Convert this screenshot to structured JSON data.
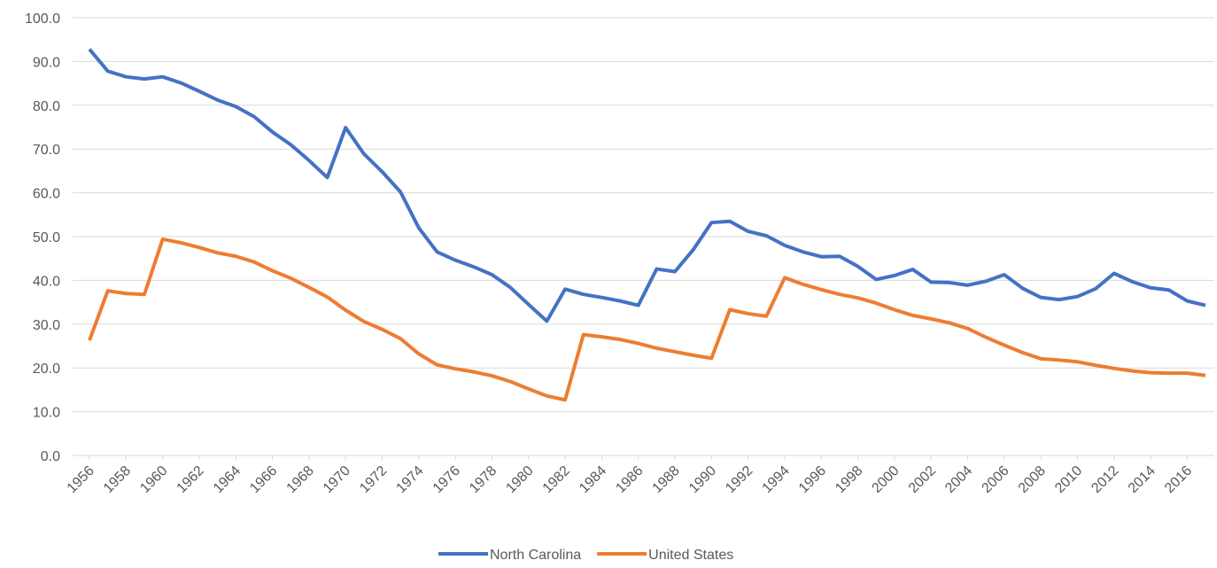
{
  "chart_data": {
    "type": "line",
    "x": [
      1956,
      1957,
      1958,
      1959,
      1960,
      1961,
      1962,
      1963,
      1964,
      1965,
      1966,
      1967,
      1968,
      1969,
      1970,
      1971,
      1972,
      1973,
      1974,
      1975,
      1976,
      1977,
      1978,
      1979,
      1980,
      1981,
      1982,
      1983,
      1984,
      1985,
      1986,
      1987,
      1988,
      1989,
      1990,
      1991,
      1992,
      1993,
      1994,
      1995,
      1996,
      1997,
      1998,
      1999,
      2000,
      2001,
      2002,
      2003,
      2004,
      2005,
      2006,
      2007,
      2008,
      2009,
      2010,
      2011,
      2012,
      2013,
      2014,
      2015,
      2016,
      2017
    ],
    "series": [
      {
        "name": "North Carolina",
        "color": "#4472c4",
        "values": [
          92.8,
          87.8,
          86.5,
          86.0,
          86.5,
          85.1,
          83.2,
          81.2,
          79.7,
          77.4,
          73.9,
          71.0,
          67.4,
          63.5,
          74.9,
          68.9,
          64.8,
          60.2,
          52.0,
          46.5,
          44.6,
          43.1,
          41.3,
          38.4,
          34.5,
          30.7,
          38.0,
          36.8,
          36.1,
          35.3,
          34.3,
          42.6,
          42.0,
          47.0,
          53.2,
          53.5,
          51.2,
          50.2,
          48.0,
          46.5,
          45.4,
          45.5,
          43.2,
          40.2,
          41.1,
          42.5,
          39.6,
          39.5,
          38.9,
          39.8,
          41.3,
          38.2,
          36.1,
          35.6,
          36.3,
          38.1,
          41.6,
          39.7,
          38.3,
          37.8,
          35.3,
          34.3
        ]
      },
      {
        "name": "United States",
        "color": "#ed7d31",
        "values": [
          26.3,
          37.6,
          37.0,
          36.8,
          49.4,
          48.6,
          47.5,
          46.3,
          45.5,
          44.2,
          42.2,
          40.5,
          38.4,
          36.2,
          33.2,
          30.6,
          28.8,
          26.7,
          23.2,
          20.7,
          19.8,
          19.1,
          18.2,
          16.9,
          15.2,
          13.6,
          12.7,
          27.6,
          27.1,
          26.5,
          25.6,
          24.5,
          23.7,
          22.9,
          22.2,
          33.3,
          32.4,
          31.8,
          40.6,
          39.1,
          37.9,
          36.8,
          36.0,
          34.8,
          33.3,
          32.0,
          31.2,
          30.3,
          29.0,
          27.0,
          25.2,
          23.5,
          22.1,
          21.8,
          21.4,
          20.6,
          19.9,
          19.3,
          18.9,
          18.8,
          18.8,
          18.3
        ]
      }
    ],
    "xlim": [
      1956,
      2017
    ],
    "xticks": [
      1956,
      1958,
      1960,
      1962,
      1964,
      1966,
      1968,
      1970,
      1972,
      1974,
      1976,
      1978,
      1980,
      1982,
      1984,
      1986,
      1988,
      1990,
      1992,
      1994,
      1996,
      1998,
      2000,
      2002,
      2004,
      2006,
      2008,
      2010,
      2012,
      2014,
      2016
    ],
    "ylim": [
      0,
      100
    ],
    "yticks": [
      {
        "value": 0,
        "label": "0.0"
      },
      {
        "value": 10,
        "label": "10.0"
      },
      {
        "value": 20,
        "label": "20.0"
      },
      {
        "value": 30,
        "label": "30.0"
      },
      {
        "value": 40,
        "label": "40.0"
      },
      {
        "value": 50,
        "label": "50.0"
      },
      {
        "value": 60,
        "label": "60.0"
      },
      {
        "value": 70,
        "label": "70.0"
      },
      {
        "value": 80,
        "label": "80.0"
      },
      {
        "value": 90,
        "label": "90.0"
      },
      {
        "value": 100,
        "label": "100.0"
      }
    ],
    "grid": true,
    "legend": "bottom"
  }
}
